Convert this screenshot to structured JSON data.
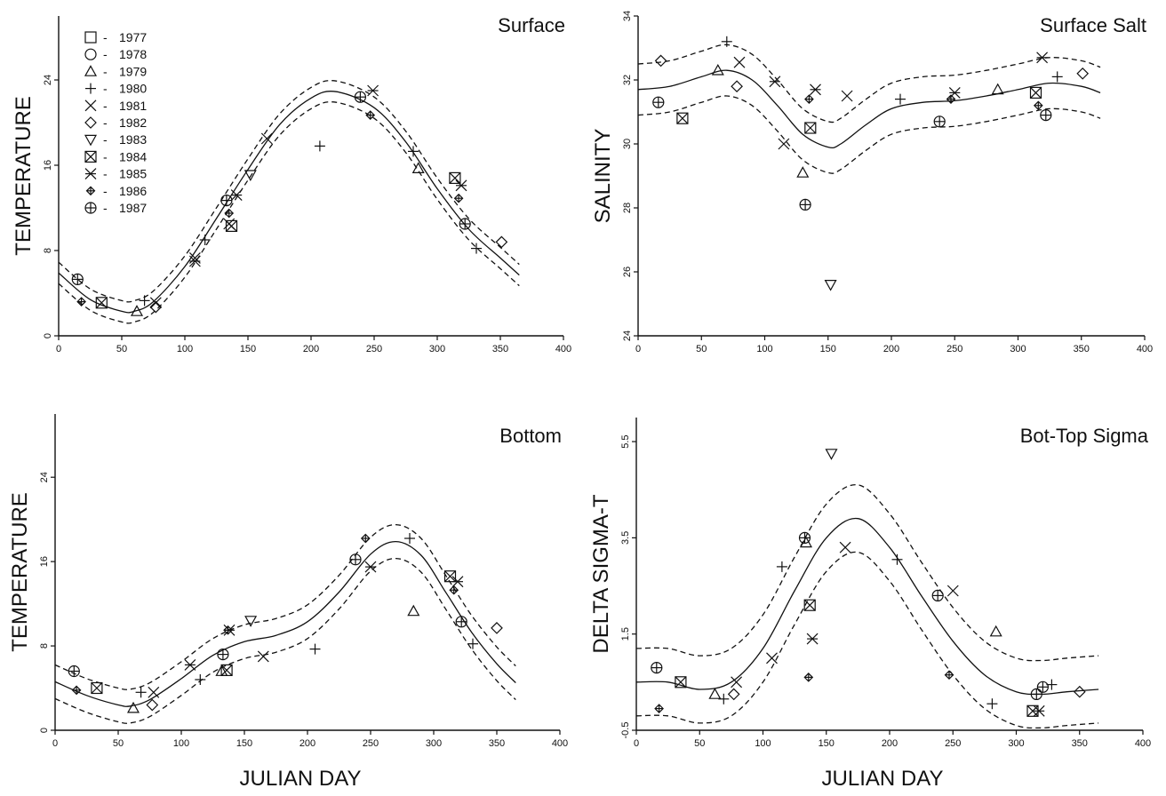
{
  "legend": [
    {
      "year": "1977",
      "symbol": "square"
    },
    {
      "year": "1978",
      "symbol": "circle"
    },
    {
      "year": "1979",
      "symbol": "triangle"
    },
    {
      "year": "1980",
      "symbol": "plus"
    },
    {
      "year": "1981",
      "symbol": "x"
    },
    {
      "year": "1982",
      "symbol": "diamond"
    },
    {
      "year": "1983",
      "symbol": "triangle-down"
    },
    {
      "year": "1984",
      "symbol": "square-x"
    },
    {
      "year": "1985",
      "symbol": "asterisk"
    },
    {
      "year": "1986",
      "symbol": "diamond-plus"
    },
    {
      "year": "1987",
      "symbol": "circle-plus"
    }
  ],
  "legend_separator": "-",
  "chart_data": [
    {
      "type": "scatter",
      "title": "Surface",
      "ylabel": "TEMPERATURE",
      "xlabel": "",
      "xlim": [
        0,
        400
      ],
      "ylim": [
        0,
        30
      ],
      "xticks": [
        0,
        50,
        100,
        150,
        200,
        250,
        300,
        350,
        400
      ],
      "yticks": [
        0,
        8,
        16,
        24
      ],
      "grid": false,
      "legend_placement": "top-left",
      "fit": {
        "x": [
          0,
          25,
          50,
          60,
          75,
          100,
          125,
          150,
          175,
          200,
          220,
          250,
          275,
          300,
          325,
          350,
          365
        ],
        "y": [
          5.9,
          3.4,
          2.3,
          2.3,
          3.2,
          6.5,
          11.0,
          15.6,
          19.8,
          22.3,
          22.9,
          21.4,
          18.2,
          13.8,
          10.0,
          7.3,
          5.7
        ]
      },
      "band_offset": 1.0,
      "points": [
        {
          "x": 15,
          "y": 5.3,
          "symbol": "circle-plus"
        },
        {
          "x": 18,
          "y": 3.2,
          "symbol": "diamond-plus"
        },
        {
          "x": 34,
          "y": 3.1,
          "symbol": "square-x"
        },
        {
          "x": 62,
          "y": 2.3,
          "symbol": "triangle"
        },
        {
          "x": 68,
          "y": 3.3,
          "symbol": "plus"
        },
        {
          "x": 77,
          "y": 2.7,
          "symbol": "diamond"
        },
        {
          "x": 77,
          "y": 3.1,
          "symbol": "x"
        },
        {
          "x": 108,
          "y": 7.3,
          "symbol": "x"
        },
        {
          "x": 108,
          "y": 7.0,
          "symbol": "asterisk"
        },
        {
          "x": 116,
          "y": 9.0,
          "symbol": "plus"
        },
        {
          "x": 133,
          "y": 12.7,
          "symbol": "circle-plus"
        },
        {
          "x": 135,
          "y": 11.5,
          "symbol": "diamond-plus"
        },
        {
          "x": 135,
          "y": 10.5,
          "symbol": "x"
        },
        {
          "x": 137,
          "y": 10.3,
          "symbol": "square-x"
        },
        {
          "x": 141,
          "y": 13.2,
          "symbol": "asterisk"
        },
        {
          "x": 152,
          "y": 15.1,
          "symbol": "triangle-down"
        },
        {
          "x": 165,
          "y": 18.5,
          "symbol": "x"
        },
        {
          "x": 207,
          "y": 17.8,
          "symbol": "plus"
        },
        {
          "x": 239,
          "y": 22.4,
          "symbol": "circle-plus"
        },
        {
          "x": 247,
          "y": 20.7,
          "symbol": "diamond-plus"
        },
        {
          "x": 249,
          "y": 23.0,
          "symbol": "asterisk"
        },
        {
          "x": 281,
          "y": 17.3,
          "symbol": "plus"
        },
        {
          "x": 285,
          "y": 15.7,
          "symbol": "triangle"
        },
        {
          "x": 314,
          "y": 14.8,
          "symbol": "square-x"
        },
        {
          "x": 317,
          "y": 12.9,
          "symbol": "diamond-plus"
        },
        {
          "x": 319,
          "y": 14.1,
          "symbol": "asterisk"
        },
        {
          "x": 322,
          "y": 10.5,
          "symbol": "circle-plus"
        },
        {
          "x": 331,
          "y": 8.2,
          "symbol": "plus"
        },
        {
          "x": 351,
          "y": 8.8,
          "symbol": "diamond"
        }
      ]
    },
    {
      "type": "scatter",
      "title": "Surface Salt",
      "ylabel": "SALINITY",
      "xlabel": "",
      "xlim": [
        0,
        400
      ],
      "ylim": [
        24,
        34
      ],
      "xticks": [
        0,
        50,
        100,
        150,
        200,
        250,
        300,
        350,
        400
      ],
      "yticks": [
        24,
        26,
        28,
        30,
        32,
        34
      ],
      "grid": false,
      "fit": {
        "x": [
          0,
          25,
          50,
          70,
          90,
          110,
          130,
          150,
          160,
          180,
          200,
          225,
          250,
          275,
          300,
          325,
          350,
          365
        ],
        "y": [
          31.7,
          31.8,
          32.1,
          32.3,
          32.0,
          31.2,
          30.3,
          29.9,
          30.0,
          30.6,
          31.1,
          31.3,
          31.35,
          31.5,
          31.7,
          31.9,
          31.8,
          31.6
        ]
      },
      "band_offset": 0.8,
      "points": [
        {
          "x": 16,
          "y": 31.3,
          "symbol": "circle-plus"
        },
        {
          "x": 18,
          "y": 32.6,
          "symbol": "diamond"
        },
        {
          "x": 35,
          "y": 30.8,
          "symbol": "square-x"
        },
        {
          "x": 63,
          "y": 32.3,
          "symbol": "triangle"
        },
        {
          "x": 70,
          "y": 33.2,
          "symbol": "plus"
        },
        {
          "x": 78,
          "y": 31.8,
          "symbol": "diamond"
        },
        {
          "x": 80,
          "y": 32.55,
          "symbol": "x"
        },
        {
          "x": 108,
          "y": 31.95,
          "symbol": "asterisk"
        },
        {
          "x": 115,
          "y": 30.0,
          "symbol": "x"
        },
        {
          "x": 130,
          "y": 29.1,
          "symbol": "triangle"
        },
        {
          "x": 132,
          "y": 28.1,
          "symbol": "circle-plus"
        },
        {
          "x": 135,
          "y": 31.4,
          "symbol": "diamond-plus"
        },
        {
          "x": 136,
          "y": 30.5,
          "symbol": "square-x"
        },
        {
          "x": 140,
          "y": 31.7,
          "symbol": "asterisk"
        },
        {
          "x": 152,
          "y": 25.6,
          "symbol": "triangle-down"
        },
        {
          "x": 165,
          "y": 31.5,
          "symbol": "x"
        },
        {
          "x": 207,
          "y": 31.4,
          "symbol": "plus"
        },
        {
          "x": 238,
          "y": 30.7,
          "symbol": "circle-plus"
        },
        {
          "x": 247,
          "y": 31.4,
          "symbol": "diamond-plus"
        },
        {
          "x": 250,
          "y": 31.6,
          "symbol": "asterisk"
        },
        {
          "x": 284,
          "y": 31.7,
          "symbol": "triangle"
        },
        {
          "x": 314,
          "y": 31.6,
          "symbol": "square-x"
        },
        {
          "x": 316,
          "y": 31.2,
          "symbol": "diamond-plus"
        },
        {
          "x": 319,
          "y": 32.7,
          "symbol": "asterisk"
        },
        {
          "x": 322,
          "y": 30.9,
          "symbol": "circle-plus"
        },
        {
          "x": 331,
          "y": 32.1,
          "symbol": "plus"
        },
        {
          "x": 351,
          "y": 32.2,
          "symbol": "diamond"
        }
      ]
    },
    {
      "type": "scatter",
      "title": "Bottom",
      "ylabel": "TEMPERATURE",
      "xlabel": "JULIAN DAY",
      "xlim": [
        0,
        400
      ],
      "ylim": [
        0,
        30
      ],
      "xticks": [
        0,
        50,
        100,
        150,
        200,
        250,
        300,
        350,
        400
      ],
      "yticks": [
        0,
        8,
        16,
        24
      ],
      "grid": false,
      "fit": {
        "x": [
          0,
          25,
          50,
          60,
          75,
          100,
          125,
          150,
          175,
          200,
          225,
          250,
          270,
          290,
          310,
          330,
          350,
          365
        ],
        "y": [
          4.6,
          3.3,
          2.4,
          2.3,
          2.9,
          4.9,
          7.1,
          8.4,
          9.0,
          10.3,
          13.1,
          16.7,
          17.9,
          16.6,
          13.0,
          9.3,
          6.3,
          4.5
        ]
      },
      "band_offset": 1.6,
      "points": [
        {
          "x": 15,
          "y": 5.6,
          "symbol": "circle-plus"
        },
        {
          "x": 17,
          "y": 3.8,
          "symbol": "diamond-plus"
        },
        {
          "x": 33,
          "y": 4.0,
          "symbol": "square-x"
        },
        {
          "x": 62,
          "y": 2.1,
          "symbol": "triangle"
        },
        {
          "x": 68,
          "y": 3.6,
          "symbol": "plus"
        },
        {
          "x": 77,
          "y": 2.4,
          "symbol": "diamond"
        },
        {
          "x": 78,
          "y": 3.6,
          "symbol": "x"
        },
        {
          "x": 107,
          "y": 6.2,
          "symbol": "asterisk"
        },
        {
          "x": 115,
          "y": 4.8,
          "symbol": "plus"
        },
        {
          "x": 132,
          "y": 5.6,
          "symbol": "triangle"
        },
        {
          "x": 133,
          "y": 7.2,
          "symbol": "circle-plus"
        },
        {
          "x": 136,
          "y": 5.7,
          "symbol": "square-x"
        },
        {
          "x": 137,
          "y": 9.5,
          "symbol": "diamond-plus"
        },
        {
          "x": 138,
          "y": 9.5,
          "symbol": "asterisk"
        },
        {
          "x": 155,
          "y": 10.4,
          "symbol": "triangle-down"
        },
        {
          "x": 165,
          "y": 7.0,
          "symbol": "x"
        },
        {
          "x": 206,
          "y": 7.7,
          "symbol": "plus"
        },
        {
          "x": 238,
          "y": 16.2,
          "symbol": "circle-plus"
        },
        {
          "x": 246,
          "y": 18.2,
          "symbol": "diamond-plus"
        },
        {
          "x": 250,
          "y": 15.5,
          "symbol": "asterisk"
        },
        {
          "x": 281,
          "y": 18.2,
          "symbol": "plus"
        },
        {
          "x": 284,
          "y": 11.3,
          "symbol": "triangle"
        },
        {
          "x": 313,
          "y": 14.6,
          "symbol": "square-x"
        },
        {
          "x": 316,
          "y": 13.3,
          "symbol": "diamond-plus"
        },
        {
          "x": 319,
          "y": 14.1,
          "symbol": "asterisk"
        },
        {
          "x": 322,
          "y": 10.3,
          "symbol": "circle-plus"
        },
        {
          "x": 331,
          "y": 8.2,
          "symbol": "plus"
        },
        {
          "x": 350,
          "y": 9.7,
          "symbol": "diamond"
        }
      ]
    },
    {
      "type": "scatter",
      "title": "Bot-Top Sigma",
      "ylabel": "DELTA SIGMA-T",
      "xlabel": "JULIAN DAY",
      "xlim": [
        0,
        400
      ],
      "ylim": [
        -0.5,
        6.0
      ],
      "xticks": [
        0,
        50,
        100,
        150,
        200,
        250,
        300,
        350,
        400
      ],
      "yticks": [
        -0.5,
        1.5,
        3.5,
        5.5
      ],
      "ytick_labels": [
        "-0.5",
        "1.5",
        "3.5",
        "5.5"
      ],
      "grid": false,
      "fit": {
        "x": [
          0,
          25,
          50,
          75,
          100,
          125,
          150,
          175,
          200,
          225,
          250,
          275,
          300,
          320,
          340,
          365
        ],
        "y": [
          0.5,
          0.5,
          0.35,
          0.5,
          1.2,
          2.4,
          3.5,
          3.9,
          3.3,
          2.3,
          1.35,
          0.65,
          0.3,
          0.25,
          0.3,
          0.35
        ]
      },
      "band_offset": 0.7,
      "points": [
        {
          "x": 16,
          "y": 0.8,
          "symbol": "circle-plus"
        },
        {
          "x": 18,
          "y": -0.05,
          "symbol": "diamond-plus"
        },
        {
          "x": 35,
          "y": 0.5,
          "symbol": "square-x"
        },
        {
          "x": 62,
          "y": 0.25,
          "symbol": "triangle"
        },
        {
          "x": 69,
          "y": 0.15,
          "symbol": "plus"
        },
        {
          "x": 77,
          "y": 0.25,
          "symbol": "diamond"
        },
        {
          "x": 79,
          "y": 0.5,
          "symbol": "x"
        },
        {
          "x": 107,
          "y": 1.0,
          "symbol": "x"
        },
        {
          "x": 115,
          "y": 2.9,
          "symbol": "plus"
        },
        {
          "x": 133,
          "y": 3.5,
          "symbol": "circle-plus"
        },
        {
          "x": 134,
          "y": 3.4,
          "symbol": "triangle"
        },
        {
          "x": 136,
          "y": 0.6,
          "symbol": "diamond-plus"
        },
        {
          "x": 137,
          "y": 2.1,
          "symbol": "square-x"
        },
        {
          "x": 139,
          "y": 1.4,
          "symbol": "asterisk"
        },
        {
          "x": 154,
          "y": 5.25,
          "symbol": "triangle-down"
        },
        {
          "x": 165,
          "y": 3.3,
          "symbol": "x"
        },
        {
          "x": 206,
          "y": 3.05,
          "symbol": "plus"
        },
        {
          "x": 238,
          "y": 2.3,
          "symbol": "circle-plus"
        },
        {
          "x": 247,
          "y": 0.65,
          "symbol": "diamond-plus"
        },
        {
          "x": 250,
          "y": 2.4,
          "symbol": "x"
        },
        {
          "x": 281,
          "y": 0.05,
          "symbol": "plus"
        },
        {
          "x": 284,
          "y": 1.55,
          "symbol": "triangle"
        },
        {
          "x": 313,
          "y": -0.1,
          "symbol": "square-x"
        },
        {
          "x": 316,
          "y": 0.25,
          "symbol": "circle-plus"
        },
        {
          "x": 318,
          "y": -0.1,
          "symbol": "asterisk"
        },
        {
          "x": 321,
          "y": 0.4,
          "symbol": "circle-plus"
        },
        {
          "x": 328,
          "y": 0.45,
          "symbol": "plus"
        },
        {
          "x": 350,
          "y": 0.3,
          "symbol": "diamond"
        }
      ]
    }
  ]
}
